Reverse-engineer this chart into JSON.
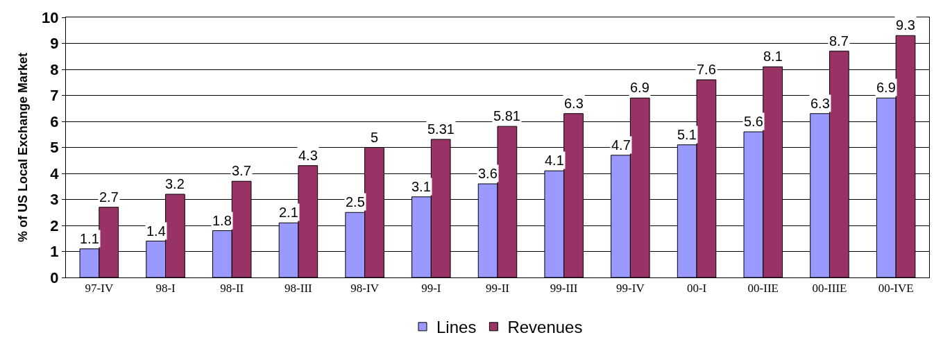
{
  "chart_data": {
    "type": "bar",
    "ylabel": "% of US Local Exchange Market",
    "categories": [
      "97-IV",
      "98-I",
      "98-II",
      "98-III",
      "98-IV",
      "99-I",
      "99-II",
      "99-III",
      "99-IV",
      "00-I",
      "00-IIE",
      "00-IIIE",
      "00-IVE"
    ],
    "series": [
      {
        "name": "Lines",
        "color": "#9999ff",
        "values": [
          1.1,
          1.4,
          1.8,
          2.1,
          2.5,
          3.1,
          3.6,
          4.1,
          4.7,
          5.1,
          5.6,
          6.3,
          6.9
        ]
      },
      {
        "name": "Revenues",
        "color": "#993366",
        "values": [
          2.7,
          3.2,
          3.7,
          4.3,
          5,
          5.31,
          5.81,
          6.3,
          6.9,
          7.6,
          8.1,
          8.7,
          9.3
        ]
      }
    ],
    "ylim": [
      0,
      10
    ],
    "yticks": [
      0,
      1,
      2,
      3,
      4,
      5,
      6,
      7,
      8,
      9,
      10
    ],
    "grid": "y",
    "legend": "bottom",
    "data_labels": true
  }
}
